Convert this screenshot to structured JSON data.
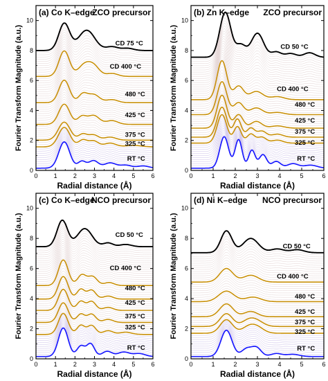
{
  "chart_data": [
    {
      "type": "line",
      "panel_label": "(a) Co K–edge",
      "precursor": "ZCO precursor",
      "xlabel": "Radial distance (Å)",
      "ylabel": "Fourier Transform Magnitude (a.u.)",
      "xlim": [
        0,
        6
      ],
      "ylim": [
        0,
        11
      ],
      "xticks": [
        "0",
        "1",
        "2",
        "3",
        "4",
        "5",
        "6"
      ],
      "yticks": [
        "0",
        "2",
        "4",
        "6",
        "8",
        "10"
      ],
      "series": [
        {
          "name": "RT °C",
          "offset": 0.0,
          "color": "#1a1aff",
          "width": 1.7,
          "peaks": [
            [
              1.45,
              1.75,
              0.28
            ],
            [
              2.35,
              0.45,
              0.2
            ],
            [
              2.95,
              0.5,
              0.25
            ],
            [
              3.8,
              0.35,
              0.3
            ],
            [
              4.6,
              0.2,
              0.3
            ],
            [
              5.5,
              0.15,
              0.3
            ]
          ],
          "base": 0.15
        },
        {
          "name": "325 °C",
          "offset": 1.45,
          "color": "#c8900a",
          "width": 1.6,
          "peaks": [
            [
              1.45,
              1.3,
              0.3
            ],
            [
              2.4,
              0.45,
              0.22
            ],
            [
              2.95,
              0.4,
              0.25
            ],
            [
              3.8,
              0.25,
              0.3
            ],
            [
              5.0,
              0.1,
              0.4
            ]
          ],
          "base": 0.12
        },
        {
          "name": "375 °C",
          "offset": 1.9,
          "color": "#c8900a",
          "width": 1.6,
          "peaks": [
            [
              1.45,
              1.2,
              0.3
            ],
            [
              2.4,
              0.4,
              0.22
            ],
            [
              2.95,
              0.35,
              0.25
            ],
            [
              3.8,
              0.2,
              0.3
            ]
          ],
          "base": 0.12
        },
        {
          "name": "425 °C",
          "offset": 2.95,
          "color": "#c8900a",
          "width": 1.6,
          "peaks": [
            [
              1.45,
              1.35,
              0.28
            ],
            [
              2.35,
              0.5,
              0.22
            ],
            [
              2.95,
              0.6,
              0.3
            ],
            [
              3.9,
              0.25,
              0.3
            ]
          ],
          "base": 0.12
        },
        {
          "name": "480 °C",
          "offset": 4.4,
          "color": "#c8900a",
          "width": 1.6,
          "peaks": [
            [
              1.45,
              1.5,
              0.27
            ],
            [
              2.4,
              0.55,
              0.22
            ],
            [
              2.95,
              0.55,
              0.3
            ],
            [
              3.9,
              0.2,
              0.3
            ]
          ],
          "base": 0.12
        },
        {
          "name": "CD 400 °C",
          "offset": 6.15,
          "color": "#c8900a",
          "width": 1.6,
          "peaks": [
            [
              1.45,
              1.7,
              0.27
            ],
            [
              2.45,
              0.7,
              0.3
            ],
            [
              2.95,
              0.7,
              0.3
            ],
            [
              3.9,
              0.2,
              0.3
            ]
          ],
          "base": 0.12
        },
        {
          "name": "CD  75 °C",
          "offset": 7.85,
          "color": "#000000",
          "width": 1.9,
          "peaks": [
            [
              1.45,
              1.8,
              0.28
            ],
            [
              2.6,
              1.35,
              0.42
            ],
            [
              3.9,
              0.25,
              0.3
            ],
            [
              4.7,
              0.15,
              0.3
            ]
          ],
          "base": 0.15
        }
      ],
      "label_pos": [
        [
          "CD  75 °C",
          5.5,
          8.35
        ],
        [
          "CD 400 °C",
          5.4,
          6.8
        ],
        [
          "480 °C",
          5.6,
          4.95
        ],
        [
          "425 °C",
          5.6,
          3.55
        ],
        [
          "375 °C",
          5.6,
          2.25
        ],
        [
          "325 °C",
          5.6,
          1.65
        ],
        [
          "RT °C",
          5.6,
          0.65
        ]
      ]
    },
    {
      "type": "line",
      "panel_label": "(b) Zn K–edge",
      "precursor": "ZCO precursor",
      "xlabel": "Radial distance (Å)",
      "ylabel": "Fourier Transform Magnitude (a.u.)",
      "xlim": [
        0,
        6
      ],
      "ylim": [
        0,
        11
      ],
      "xticks": [
        "0",
        "1",
        "2",
        "3",
        "4",
        "5",
        "6"
      ],
      "yticks": [
        "0",
        "2",
        "4",
        "6",
        "8",
        "10"
      ],
      "series": [
        {
          "name": "RT °C",
          "offset": 0.0,
          "color": "#1a1aff",
          "width": 1.7,
          "peaks": [
            [
              1.5,
              2.1,
              0.2
            ],
            [
              2.15,
              1.9,
              0.16
            ],
            [
              2.75,
              1.2,
              0.15
            ],
            [
              3.25,
              0.9,
              0.17
            ],
            [
              3.85,
              0.45,
              0.2
            ],
            [
              4.6,
              0.3,
              0.25
            ],
            [
              5.4,
              0.2,
              0.3
            ]
          ],
          "base": 0.15
        },
        {
          "name": "325 °C",
          "offset": 1.7,
          "color": "#c8900a",
          "width": 1.6,
          "peaks": [
            [
              1.4,
              1.9,
              0.22
            ],
            [
              2.1,
              1.1,
              0.17
            ],
            [
              2.7,
              0.6,
              0.18
            ],
            [
              3.2,
              0.4,
              0.2
            ],
            [
              3.9,
              0.2,
              0.25
            ]
          ],
          "base": 0.12
        },
        {
          "name": "375 °C",
          "offset": 2.1,
          "color": "#c8900a",
          "width": 1.6,
          "peaks": [
            [
              1.4,
              2.0,
              0.22
            ],
            [
              2.1,
              1.2,
              0.17
            ],
            [
              2.7,
              0.6,
              0.18
            ],
            [
              3.2,
              0.4,
              0.2
            ],
            [
              3.9,
              0.2,
              0.25
            ]
          ],
          "base": 0.12
        },
        {
          "name": "425 °C",
          "offset": 2.7,
          "color": "#c8900a",
          "width": 1.6,
          "peaks": [
            [
              1.4,
              2.2,
              0.22
            ],
            [
              2.15,
              0.9,
              0.2
            ],
            [
              2.95,
              0.45,
              0.25
            ],
            [
              3.9,
              0.15,
              0.3
            ]
          ],
          "base": 0.12
        },
        {
          "name": "480 °C",
          "offset": 3.6,
          "color": "#c8900a",
          "width": 1.6,
          "peaks": [
            [
              1.4,
              2.2,
              0.22
            ],
            [
              2.15,
              0.8,
              0.22
            ],
            [
              2.95,
              0.45,
              0.28
            ],
            [
              3.9,
              0.15,
              0.3
            ]
          ],
          "base": 0.12
        },
        {
          "name": "CD 400 °C",
          "offset": 4.6,
          "color": "#c8900a",
          "width": 1.6,
          "peaks": [
            [
              1.4,
              2.6,
              0.22
            ],
            [
              2.15,
              0.9,
              0.22
            ],
            [
              2.95,
              0.55,
              0.3
            ],
            [
              3.9,
              0.2,
              0.3
            ]
          ],
          "base": 0.12
        },
        {
          "name": "CD  50 °C",
          "offset": 7.4,
          "color": "#000000",
          "width": 1.9,
          "peaks": [
            [
              1.55,
              3.0,
              0.25
            ],
            [
              2.25,
              0.8,
              0.22
            ],
            [
              3.0,
              1.6,
              0.28
            ],
            [
              3.85,
              0.35,
              0.22
            ],
            [
              4.5,
              0.25,
              0.25
            ],
            [
              5.35,
              0.3,
              0.25
            ]
          ],
          "base": 0.15
        }
      ],
      "label_pos": [
        [
          "CD  50 °C",
          5.3,
          8.1
        ],
        [
          "CD 400 °C",
          5.3,
          5.3
        ],
        [
          "480 °C",
          5.6,
          4.25
        ],
        [
          "425 °C",
          5.6,
          3.2
        ],
        [
          "375 °C",
          5.6,
          2.45
        ],
        [
          "325 °C",
          5.6,
          1.7
        ],
        [
          "RT °C",
          5.6,
          0.65
        ]
      ]
    },
    {
      "type": "line",
      "panel_label": "(c) Co K–edge",
      "precursor": "NCO precursor",
      "xlabel": "Radial distance (Å)",
      "ylabel": "Fourier Transform Magnitude (a.u.)",
      "xlim": [
        0,
        6
      ],
      "ylim": [
        0,
        11
      ],
      "xticks": [
        "0",
        "1",
        "2",
        "3",
        "4",
        "5",
        "6"
      ],
      "yticks": [
        "0",
        "2",
        "4",
        "6",
        "8",
        "10"
      ],
      "series": [
        {
          "name": "RT °C",
          "offset": 0.0,
          "color": "#1a1aff",
          "width": 1.7,
          "peaks": [
            [
              1.4,
              1.9,
              0.25
            ],
            [
              2.3,
              0.7,
              0.2
            ],
            [
              2.8,
              0.85,
              0.2
            ],
            [
              3.65,
              0.35,
              0.25
            ],
            [
              4.5,
              0.3,
              0.3
            ],
            [
              5.3,
              0.2,
              0.3
            ]
          ],
          "base": 0.15
        },
        {
          "name": "325 °C",
          "offset": 1.5,
          "color": "#c8900a",
          "width": 1.6,
          "peaks": [
            [
              1.4,
              1.4,
              0.25
            ],
            [
              2.3,
              0.6,
              0.2
            ],
            [
              2.85,
              0.6,
              0.22
            ],
            [
              3.7,
              0.25,
              0.25
            ],
            [
              4.6,
              0.15,
              0.3
            ]
          ],
          "base": 0.12
        },
        {
          "name": "375 °C",
          "offset": 2.3,
          "color": "#c8900a",
          "width": 1.6,
          "peaks": [
            [
              1.4,
              1.3,
              0.25
            ],
            [
              2.3,
              0.55,
              0.2
            ],
            [
              2.85,
              0.55,
              0.22
            ],
            [
              3.7,
              0.2,
              0.25
            ]
          ],
          "base": 0.12
        },
        {
          "name": "425 °C",
          "offset": 3.1,
          "color": "#c8900a",
          "width": 1.6,
          "peaks": [
            [
              1.4,
              1.4,
              0.25
            ],
            [
              2.3,
              0.6,
              0.2
            ],
            [
              2.85,
              0.6,
              0.22
            ],
            [
              3.7,
              0.2,
              0.25
            ]
          ],
          "base": 0.12
        },
        {
          "name": "480 °C",
          "offset": 3.85,
          "color": "#c8900a",
          "width": 1.6,
          "peaks": [
            [
              1.4,
              1.5,
              0.25
            ],
            [
              2.3,
              0.65,
              0.2
            ],
            [
              2.85,
              0.6,
              0.22
            ],
            [
              3.7,
              0.2,
              0.25
            ]
          ],
          "base": 0.12
        },
        {
          "name": "CD 400 °C",
          "offset": 4.75,
          "color": "#c8900a",
          "width": 1.6,
          "peaks": [
            [
              1.4,
              1.7,
              0.25
            ],
            [
              2.35,
              0.7,
              0.22
            ],
            [
              2.9,
              0.6,
              0.24
            ],
            [
              3.75,
              0.2,
              0.25
            ]
          ],
          "base": 0.12
        },
        {
          "name": "CD  50 °C",
          "offset": 7.35,
          "color": "#000000",
          "width": 1.9,
          "peaks": [
            [
              1.35,
              1.75,
              0.27
            ],
            [
              2.5,
              1.2,
              0.38
            ],
            [
              3.7,
              0.25,
              0.25
            ],
            [
              4.6,
              0.15,
              0.3
            ]
          ],
          "base": 0.1
        }
      ],
      "label_pos": [
        [
          "CD  50 °C",
          5.5,
          8.1
        ],
        [
          "CD 400 °C",
          5.4,
          5.9
        ],
        [
          "480 °C",
          5.6,
          4.55
        ],
        [
          "425 °C",
          5.6,
          3.6
        ],
        [
          "375 °C",
          5.6,
          2.7
        ],
        [
          "325 °C",
          5.6,
          1.95
        ],
        [
          "RT °C",
          5.6,
          0.6
        ]
      ]
    },
    {
      "type": "line",
      "panel_label": "(d) Ni K–edge",
      "precursor": "NCO precursor",
      "xlabel": "Radial distance (Å)",
      "ylabel": "Fourier Transform Magnitude (a.u.)",
      "xlim": [
        0,
        6
      ],
      "ylim": [
        0,
        11
      ],
      "xticks": [
        "0",
        "1",
        "2",
        "3",
        "4",
        "5",
        "6"
      ],
      "yticks": [
        "0",
        "2",
        "4",
        "6",
        "8",
        "10"
      ],
      "series": [
        {
          "name": "RT °C",
          "offset": 0.0,
          "color": "#1a1aff",
          "width": 1.7,
          "peaks": [
            [
              1.6,
              1.75,
              0.25
            ],
            [
              2.5,
              0.5,
              0.22
            ],
            [
              2.95,
              0.6,
              0.22
            ],
            [
              3.85,
              0.2,
              0.25
            ],
            [
              4.6,
              0.15,
              0.3
            ]
          ],
          "base": 0.15
        },
        {
          "name": "325 °C",
          "offset": 1.6,
          "color": "#c8900a",
          "width": 1.6,
          "peaks": [
            [
              1.6,
              0.9,
              0.28
            ],
            [
              2.6,
              0.4,
              0.3
            ],
            [
              3.0,
              0.35,
              0.3
            ]
          ],
          "base": 0.1
        },
        {
          "name": "375 °C",
          "offset": 2.05,
          "color": "#c8900a",
          "width": 1.6,
          "peaks": [
            [
              1.6,
              0.85,
              0.28
            ],
            [
              2.6,
              0.4,
              0.3
            ],
            [
              3.0,
              0.3,
              0.3
            ]
          ],
          "base": 0.1
        },
        {
          "name": "425 °C",
          "offset": 2.7,
          "color": "#c8900a",
          "width": 1.6,
          "peaks": [
            [
              1.6,
              0.85,
              0.3
            ],
            [
              2.7,
              0.35,
              0.3
            ]
          ],
          "base": 0.1
        },
        {
          "name": "480 °C",
          "offset": 3.7,
          "color": "#c8900a",
          "width": 1.6,
          "peaks": [
            [
              1.6,
              0.7,
              0.35
            ],
            [
              2.8,
              0.3,
              0.35
            ]
          ],
          "base": 0.1
        },
        {
          "name": "CD 400 °C",
          "offset": 5.0,
          "color": "#c8900a",
          "width": 1.6,
          "peaks": [
            [
              1.6,
              0.9,
              0.3
            ],
            [
              2.7,
              0.45,
              0.35
            ]
          ],
          "base": 0.1
        },
        {
          "name": "CD  50 °C",
          "offset": 6.95,
          "color": "#000000",
          "width": 1.9,
          "peaks": [
            [
              1.6,
              1.45,
              0.25
            ],
            [
              2.7,
              0.95,
              0.35
            ],
            [
              3.9,
              0.25,
              0.3
            ],
            [
              4.8,
              0.2,
              0.3
            ]
          ],
          "base": 0.1
        }
      ],
      "label_pos": [
        [
          "CD  50 °C",
          5.4,
          7.35
        ],
        [
          "CD 400 °C",
          5.3,
          5.35
        ],
        [
          "480 °C",
          5.6,
          4.0
        ],
        [
          "425 °C",
          5.6,
          3.0
        ],
        [
          "375 °C",
          5.6,
          2.3
        ],
        [
          "325 °C",
          5.6,
          1.65
        ],
        [
          "RT °C",
          5.6,
          0.55
        ]
      ]
    }
  ]
}
